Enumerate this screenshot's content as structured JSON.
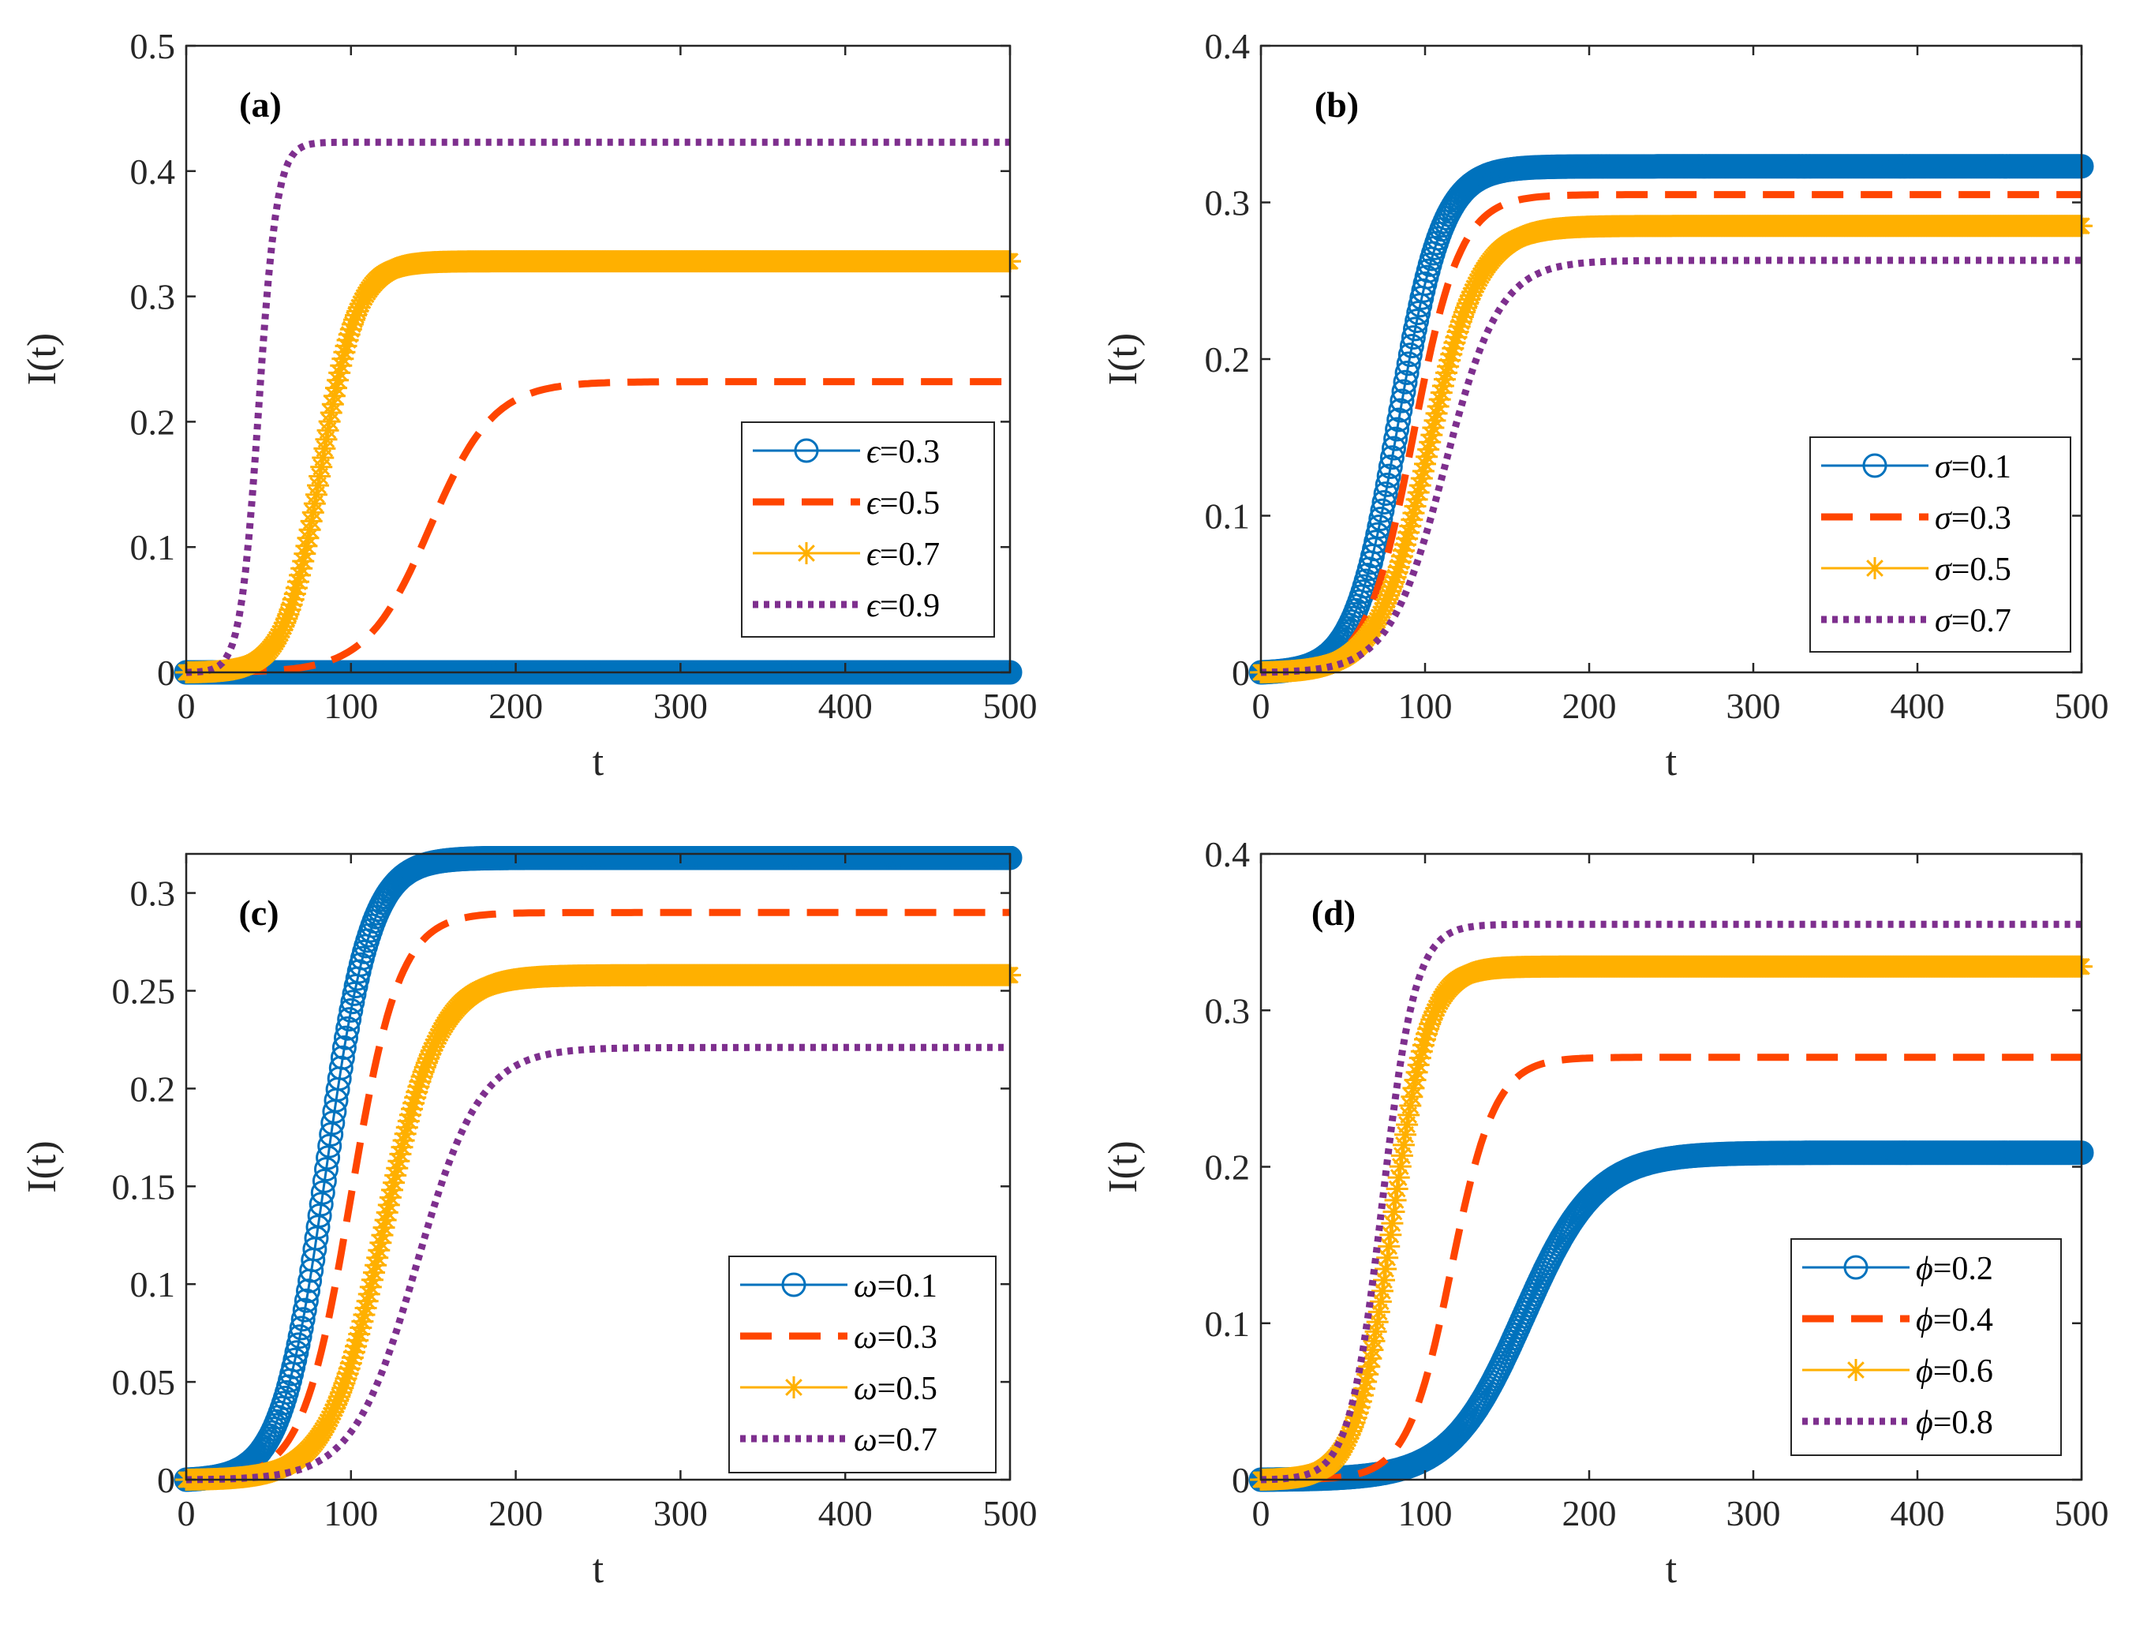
{
  "chart_data": [
    {
      "type": "line",
      "panel_label": "(a)",
      "xlabel": "t",
      "ylabel": "I(t)",
      "xlim": [
        0,
        500
      ],
      "ylim": [
        0,
        0.5
      ],
      "xticks": [
        0,
        100,
        200,
        300,
        400,
        500
      ],
      "yticks": [
        0,
        0.1,
        0.2,
        0.3,
        0.4,
        0.5
      ],
      "xtick_labels": [
        "0",
        "100",
        "200",
        "300",
        "400",
        "500"
      ],
      "ytick_labels": [
        "0",
        "0.1",
        "0.2",
        "0.3",
        "0.4",
        "0.5"
      ],
      "legend_position": "lower-right",
      "series": [
        {
          "name": "ϵ=0.3",
          "symbol": "ϵ",
          "value_text": "=0.3",
          "style": "circle",
          "color": "#0072BD",
          "plateau": 0.0,
          "midpoint": 100,
          "rate": 0.05
        },
        {
          "name": "ϵ=0.5",
          "symbol": "ϵ",
          "value_text": "=0.5",
          "style": "dashed",
          "color": "#FF4500",
          "plateau": 0.232,
          "midpoint": 148,
          "rate": 0.052
        },
        {
          "name": "ϵ=0.7",
          "symbol": "ϵ",
          "value_text": "=0.7",
          "style": "star",
          "color": "#FFB000",
          "plateau": 0.328,
          "midpoint": 82,
          "rate": 0.09
        },
        {
          "name": "ϵ=0.9",
          "symbol": "ϵ",
          "value_text": "=0.9",
          "style": "dotted",
          "color": "#7E2F8E",
          "plateau": 0.423,
          "midpoint": 44,
          "rate": 0.18
        }
      ]
    },
    {
      "type": "line",
      "panel_label": "(b)",
      "xlabel": "t",
      "ylabel": "I(t)",
      "xlim": [
        0,
        500
      ],
      "ylim": [
        0,
        0.4
      ],
      "xticks": [
        0,
        100,
        200,
        300,
        400,
        500
      ],
      "yticks": [
        0,
        0.1,
        0.2,
        0.3,
        0.4
      ],
      "xtick_labels": [
        "0",
        "100",
        "200",
        "300",
        "400",
        "500"
      ],
      "ytick_labels": [
        "0",
        "0.1",
        "0.2",
        "0.3",
        "0.4"
      ],
      "legend_position": "lower-right",
      "series": [
        {
          "name": "σ=0.1",
          "symbol": "σ",
          "value_text": "=0.1",
          "style": "circle",
          "color": "#0072BD",
          "plateau": 0.323,
          "midpoint": 84,
          "rate": 0.075
        },
        {
          "name": "σ=0.3",
          "symbol": "σ",
          "value_text": "=0.3",
          "style": "dashed",
          "color": "#FF4500",
          "plateau": 0.305,
          "midpoint": 93,
          "rate": 0.07
        },
        {
          "name": "σ=0.5",
          "symbol": "σ",
          "value_text": "=0.5",
          "style": "star",
          "color": "#FFB000",
          "plateau": 0.285,
          "midpoint": 102,
          "rate": 0.065
        },
        {
          "name": "σ=0.7",
          "symbol": "σ",
          "value_text": "=0.7",
          "style": "dotted",
          "color": "#7E2F8E",
          "plateau": 0.263,
          "midpoint": 112,
          "rate": 0.06
        }
      ]
    },
    {
      "type": "line",
      "panel_label": "(c)",
      "xlabel": "t",
      "ylabel": "I(t)",
      "xlim": [
        0,
        500
      ],
      "ylim": [
        0,
        0.32
      ],
      "xticks": [
        0,
        100,
        200,
        300,
        400,
        500
      ],
      "yticks": [
        0,
        0.05,
        0.1,
        0.15,
        0.2,
        0.25,
        0.3
      ],
      "xtick_labels": [
        "0",
        "100",
        "200",
        "300",
        "400",
        "500"
      ],
      "ytick_labels": [
        "0",
        "0.05",
        "0.1",
        "0.15",
        "0.2",
        "0.25",
        "0.3"
      ],
      "legend_position": "lower-right",
      "series": [
        {
          "name": "ω=0.1",
          "symbol": "ω",
          "value_text": "=0.1",
          "style": "circle",
          "color": "#0072BD",
          "plateau": 0.318,
          "midpoint": 85,
          "rate": 0.075
        },
        {
          "name": "ω=0.3",
          "symbol": "ω",
          "value_text": "=0.3",
          "style": "dashed",
          "color": "#FF4500",
          "plateau": 0.29,
          "midpoint": 100,
          "rate": 0.068
        },
        {
          "name": "ω=0.5",
          "symbol": "ω",
          "value_text": "=0.5",
          "style": "star",
          "color": "#FFB000",
          "plateau": 0.258,
          "midpoint": 120,
          "rate": 0.06
        },
        {
          "name": "ω=0.7",
          "symbol": "ω",
          "value_text": "=0.7",
          "style": "dotted",
          "color": "#7E2F8E",
          "plateau": 0.221,
          "midpoint": 140,
          "rate": 0.052
        }
      ]
    },
    {
      "type": "line",
      "panel_label": "(d)",
      "xlabel": "t",
      "ylabel": "I(t)",
      "xlim": [
        0,
        500
      ],
      "ylim": [
        0,
        0.4
      ],
      "xticks": [
        0,
        100,
        200,
        300,
        400,
        500
      ],
      "yticks": [
        0,
        0.1,
        0.2,
        0.3,
        0.4
      ],
      "xtick_labels": [
        "0",
        "100",
        "200",
        "300",
        "400",
        "500"
      ],
      "ytick_labels": [
        "0",
        "0.1",
        "0.2",
        "0.3",
        "0.4"
      ],
      "legend_position": "lower-right",
      "series": [
        {
          "name": "ϕ=0.2",
          "symbol": "ϕ",
          "value_text": "=0.2",
          "style": "circle",
          "color": "#0072BD",
          "plateau": 0.209,
          "midpoint": 160,
          "rate": 0.045
        },
        {
          "name": "ϕ=0.4",
          "symbol": "ϕ",
          "value_text": "=0.4",
          "style": "dashed",
          "color": "#FF4500",
          "plateau": 0.27,
          "midpoint": 116,
          "rate": 0.075
        },
        {
          "name": "ϕ=0.6",
          "symbol": "ϕ",
          "value_text": "=0.6",
          "style": "star",
          "color": "#FFB000",
          "plateau": 0.328,
          "midpoint": 80,
          "rate": 0.09
        },
        {
          "name": "ϕ=0.8",
          "symbol": "ϕ",
          "value_text": "=0.8",
          "style": "dotted",
          "color": "#7E2F8E",
          "plateau": 0.355,
          "midpoint": 74,
          "rate": 0.1
        }
      ]
    }
  ]
}
